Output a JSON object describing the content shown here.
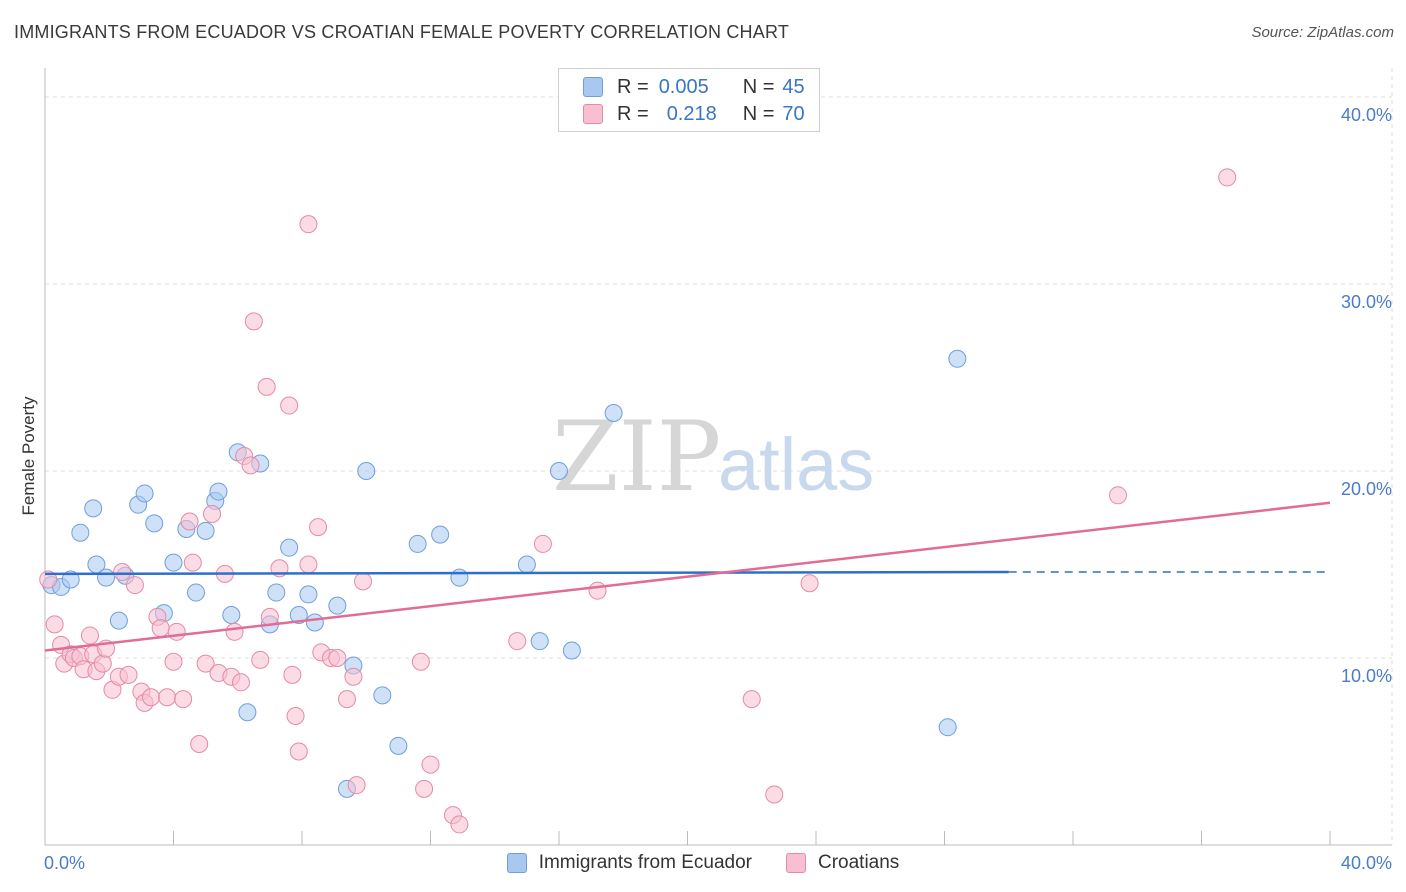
{
  "title": "IMMIGRANTS FROM ECUADOR VS CROATIAN FEMALE POVERTY CORRELATION CHART",
  "source": "Source: ZipAtlas.com",
  "watermark": {
    "zip": "ZIP",
    "atlas": "atlas"
  },
  "legend": {
    "series": [
      {
        "r_label": "R =",
        "r_value": "0.005",
        "n_label": "N =",
        "n_value": "45",
        "color": "#a8c8f0",
        "border": "#6f9fdc"
      },
      {
        "r_label": "R =",
        "r_value": "0.218",
        "n_label": "N =",
        "n_value": "70",
        "color": "#f7bfd0",
        "border": "#e58aa8"
      }
    ]
  },
  "bottom_legend": {
    "items": [
      {
        "label": "Immigrants from Ecuador",
        "color": "#a8c8f0",
        "border": "#6f9fdc"
      },
      {
        "label": "Croatians",
        "color": "#f7bfd0",
        "border": "#e58aa8"
      }
    ]
  },
  "chart_data": {
    "type": "scatter",
    "title": "IMMIGRANTS FROM ECUADOR VS CROATIAN FEMALE POVERTY CORRELATION CHART",
    "xlabel": "",
    "ylabel": "Female Poverty",
    "xlim": [
      0,
      40
    ],
    "ylim": [
      0,
      40
    ],
    "x_tick_labels": [
      "0.0%",
      "40.0%"
    ],
    "y_ticks": [
      10,
      20,
      30,
      40
    ],
    "y_tick_labels": [
      "10.0%",
      "20.0%",
      "30.0%",
      "40.0%"
    ],
    "grid": true,
    "series": [
      {
        "name": "Immigrants from Ecuador",
        "color": "#a8c8f0",
        "edge": "#6f9fdc",
        "line_color": "#2f6fcc",
        "trend": {
          "x0": 0,
          "y0": 14.5,
          "x1": 30,
          "y1": 14.6,
          "dash_x1": 40,
          "dash_y1": 14.6
        },
        "points": [
          [
            0.2,
            13.9
          ],
          [
            0.5,
            13.8
          ],
          [
            0.8,
            14.2
          ],
          [
            1.1,
            16.7
          ],
          [
            1.5,
            18.0
          ],
          [
            1.6,
            15.0
          ],
          [
            1.9,
            14.3
          ],
          [
            2.3,
            12.0
          ],
          [
            2.5,
            14.4
          ],
          [
            2.9,
            18.2
          ],
          [
            3.1,
            18.8
          ],
          [
            3.4,
            17.2
          ],
          [
            3.7,
            12.4
          ],
          [
            4.0,
            15.1
          ],
          [
            4.4,
            16.9
          ],
          [
            4.7,
            13.5
          ],
          [
            5.0,
            16.8
          ],
          [
            5.3,
            18.4
          ],
          [
            5.4,
            18.9
          ],
          [
            5.8,
            12.3
          ],
          [
            6.0,
            21.0
          ],
          [
            6.3,
            7.1
          ],
          [
            6.7,
            20.4
          ],
          [
            7.0,
            11.8
          ],
          [
            7.2,
            13.5
          ],
          [
            7.6,
            15.9
          ],
          [
            7.9,
            12.3
          ],
          [
            8.2,
            13.4
          ],
          [
            8.4,
            11.9
          ],
          [
            9.1,
            12.8
          ],
          [
            9.4,
            3.0
          ],
          [
            9.6,
            9.6
          ],
          [
            10.0,
            20.0
          ],
          [
            10.5,
            8.0
          ],
          [
            11.0,
            5.3
          ],
          [
            11.6,
            16.1
          ],
          [
            12.3,
            16.6
          ],
          [
            12.9,
            14.3
          ],
          [
            15.0,
            15.0
          ],
          [
            15.4,
            10.9
          ],
          [
            16.0,
            20.0
          ],
          [
            16.4,
            10.4
          ],
          [
            17.7,
            23.1
          ],
          [
            28.1,
            6.3
          ],
          [
            28.4,
            26.0
          ]
        ]
      },
      {
        "name": "Croatians",
        "color": "#f7bfd0",
        "edge": "#e58aa8",
        "line_color": "#e06c98",
        "trend": {
          "x0": 0,
          "y0": 10.4,
          "x1": 40,
          "y1": 18.3
        },
        "points": [
          [
            0.1,
            14.2
          ],
          [
            0.3,
            11.8
          ],
          [
            0.5,
            10.7
          ],
          [
            0.6,
            9.7
          ],
          [
            0.8,
            10.2
          ],
          [
            0.9,
            10.0
          ],
          [
            1.1,
            10.1
          ],
          [
            1.2,
            9.4
          ],
          [
            1.4,
            11.2
          ],
          [
            1.5,
            10.2
          ],
          [
            1.6,
            9.3
          ],
          [
            1.8,
            9.7
          ],
          [
            1.9,
            10.5
          ],
          [
            2.1,
            8.3
          ],
          [
            2.3,
            9.0
          ],
          [
            2.4,
            14.6
          ],
          [
            2.6,
            9.1
          ],
          [
            2.8,
            13.9
          ],
          [
            3.0,
            8.2
          ],
          [
            3.1,
            7.6
          ],
          [
            3.3,
            7.9
          ],
          [
            3.5,
            12.2
          ],
          [
            3.6,
            11.6
          ],
          [
            3.8,
            7.9
          ],
          [
            4.0,
            9.8
          ],
          [
            4.1,
            11.4
          ],
          [
            4.3,
            7.8
          ],
          [
            4.5,
            17.3
          ],
          [
            4.6,
            15.1
          ],
          [
            4.8,
            5.4
          ],
          [
            5.0,
            9.7
          ],
          [
            5.2,
            17.7
          ],
          [
            5.4,
            9.2
          ],
          [
            5.6,
            14.5
          ],
          [
            5.8,
            9.0
          ],
          [
            5.9,
            11.4
          ],
          [
            6.1,
            8.7
          ],
          [
            6.2,
            20.8
          ],
          [
            6.4,
            20.3
          ],
          [
            6.5,
            28.0
          ],
          [
            6.7,
            9.9
          ],
          [
            6.9,
            24.5
          ],
          [
            7.0,
            12.2
          ],
          [
            7.3,
            14.8
          ],
          [
            7.6,
            23.5
          ],
          [
            7.7,
            9.1
          ],
          [
            7.8,
            6.9
          ],
          [
            7.9,
            5.0
          ],
          [
            8.2,
            15.0
          ],
          [
            8.2,
            33.2
          ],
          [
            8.5,
            17.0
          ],
          [
            8.6,
            10.3
          ],
          [
            8.9,
            10.0
          ],
          [
            9.1,
            10.0
          ],
          [
            9.4,
            7.8
          ],
          [
            9.6,
            9.0
          ],
          [
            9.7,
            3.2
          ],
          [
            9.9,
            14.1
          ],
          [
            11.7,
            9.8
          ],
          [
            11.8,
            3.0
          ],
          [
            12.0,
            4.3
          ],
          [
            12.7,
            1.6
          ],
          [
            12.9,
            1.1
          ],
          [
            14.7,
            10.9
          ],
          [
            15.5,
            16.1
          ],
          [
            17.2,
            13.6
          ],
          [
            22.0,
            7.8
          ],
          [
            22.7,
            2.7
          ],
          [
            23.8,
            14.0
          ],
          [
            33.4,
            18.7
          ],
          [
            36.8,
            35.7
          ]
        ]
      }
    ]
  }
}
